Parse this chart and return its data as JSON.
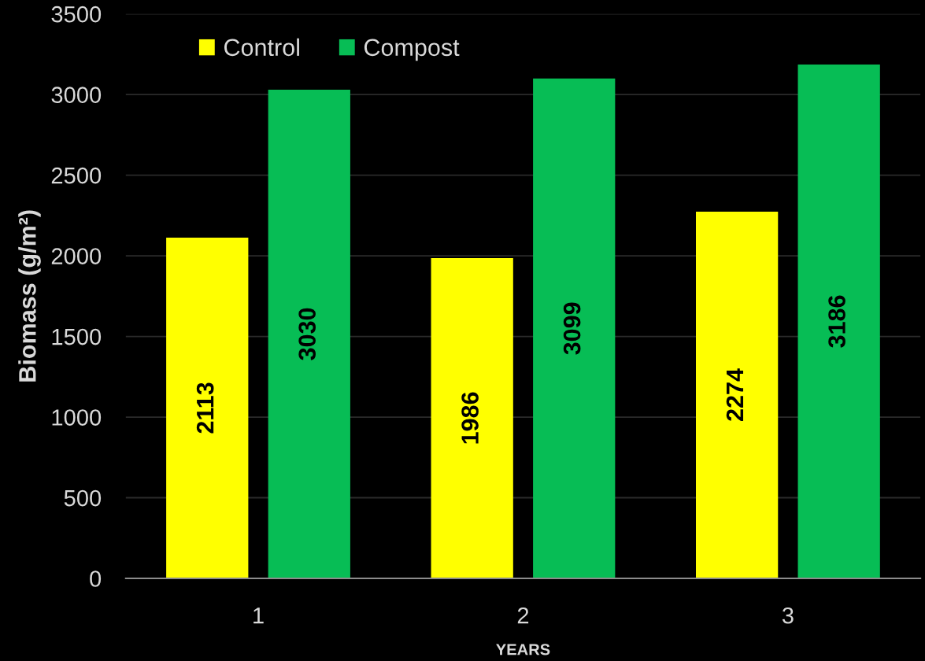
{
  "chart_data": {
    "type": "bar",
    "ylabel": "Biomass (g/m²)",
    "xlabel": "YEARS",
    "categories": [
      "1",
      "2",
      "3"
    ],
    "series": [
      {
        "name": "Control",
        "color": "#ffff00",
        "values": [
          2113,
          1986,
          2274
        ]
      },
      {
        "name": "Compost",
        "color": "#07bd55",
        "values": [
          3030,
          3099,
          3186
        ]
      }
    ],
    "ylim": [
      0,
      3500
    ],
    "yticks": [
      0,
      500,
      1000,
      1500,
      2000,
      2500,
      3000,
      3500
    ],
    "grid": "y",
    "legend": "top left",
    "data_labels": true
  }
}
